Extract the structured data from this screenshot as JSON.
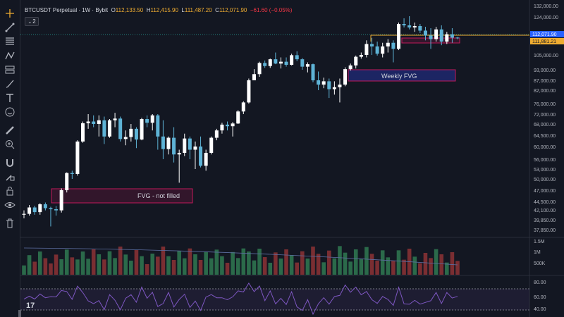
{
  "legend": {
    "symbol": "BTCUSDT Perpetual · 1W · Bybit",
    "open_label": "O",
    "open": "112,133.50",
    "high_label": "H",
    "high": "112,415.90",
    "low_label": "L",
    "low": "111,487.20",
    "close_label": "C",
    "close": "112,071.90",
    "change": "−61.60 (−0.05%)",
    "collapse_count": "2"
  },
  "price_axis": {
    "ticks": [
      "132,000.00",
      "124,000.00",
      "116,000.00",
      "105,000.00",
      "93,000.00",
      "87,000.00",
      "82,000.00",
      "76,000.00",
      "72,000.00",
      "68,000.00",
      "64,500.00",
      "60,000.00",
      "56,000.00",
      "53,000.00",
      "50,000.00",
      "47,000.00",
      "44,500.00",
      "42,100.00",
      "39,850.00",
      "37,850.00"
    ],
    "current_price": "112,071.90",
    "level_price": "111,881.21"
  },
  "volume_axis": {
    "ticks": [
      "1.5M",
      "1M",
      "500K"
    ]
  },
  "rsi_axis": {
    "ticks": [
      "80.00",
      "60.00",
      "40.00"
    ]
  },
  "annotations": {
    "fvg_not_filled": "FVG - not filled",
    "weekly_fvg": "Weekly FVG"
  },
  "colors": {
    "up": "#ffffff",
    "down": "#5eb3d6",
    "vol_up": "#2b6a4a",
    "vol_down": "#7a2e32",
    "box_border": "#c2185b",
    "level_line": "#f0ad31",
    "rsi_line": "#7e57c2"
  },
  "toolbar_icons": [
    "crosshair-icon",
    "trendline-icon",
    "fib-icon",
    "pattern-icon",
    "projection-icon",
    "brush-icon",
    "text-icon",
    "emoji-icon",
    "ruler-icon",
    "zoom-icon",
    "magnet-icon",
    "lock-draw-icon",
    "lock-icon",
    "eye-icon",
    "trash-icon"
  ],
  "chart_data": {
    "type": "candlestick",
    "interval": "1W",
    "candles": [
      [
        41000,
        42000,
        40200,
        41200
      ],
      [
        41200,
        43500,
        40800,
        42800
      ],
      [
        42800,
        43300,
        41000,
        41600
      ],
      [
        41600,
        44000,
        41000,
        43700
      ],
      [
        43700,
        44200,
        42000,
        42600
      ],
      [
        42600,
        43000,
        38500,
        42300
      ],
      [
        42300,
        43200,
        40800,
        42000
      ],
      [
        42000,
        47500,
        41500,
        47000
      ],
      [
        47000,
        52000,
        46500,
        51800
      ],
      [
        51800,
        52500,
        50000,
        51500
      ],
      [
        51500,
        62500,
        51000,
        62000
      ],
      [
        62000,
        69000,
        61500,
        68300
      ],
      [
        68300,
        72000,
        66500,
        69000
      ],
      [
        69000,
        71500,
        67000,
        68000
      ],
      [
        68000,
        71500,
        64000,
        69500
      ],
      [
        69500,
        71000,
        61000,
        64000
      ],
      [
        64000,
        70000,
        63500,
        69500
      ],
      [
        69500,
        72500,
        67000,
        70200
      ],
      [
        70200,
        71000,
        62000,
        63000
      ],
      [
        63000,
        66000,
        60500,
        63800
      ],
      [
        63800,
        68000,
        62000,
        66500
      ],
      [
        66500,
        67000,
        59500,
        62800
      ],
      [
        62800,
        70500,
        62500,
        70000
      ],
      [
        70000,
        71500,
        67000,
        68500
      ],
      [
        68500,
        72000,
        66000,
        71500
      ],
      [
        71500,
        72000,
        59000,
        64000
      ],
      [
        64000,
        69500,
        56000,
        59200
      ],
      [
        59200,
        64000,
        57500,
        63500
      ],
      [
        63500,
        67000,
        55000,
        57500
      ],
      [
        57500,
        59000,
        49000,
        58000
      ],
      [
        58000,
        65000,
        57000,
        63200
      ],
      [
        63200,
        64000,
        56000,
        59000
      ],
      [
        59000,
        62000,
        53000,
        60000
      ],
      [
        60000,
        64000,
        53500,
        54000
      ],
      [
        54000,
        59000,
        52500,
        58000
      ],
      [
        58000,
        64000,
        57500,
        63500
      ],
      [
        63500,
        66500,
        62500,
        66000
      ],
      [
        66000,
        68500,
        65000,
        67800
      ],
      [
        67800,
        69000,
        66000,
        67300
      ],
      [
        67300,
        68800,
        64000,
        68200
      ],
      [
        68200,
        73500,
        68000,
        73000
      ],
      [
        73000,
        77000,
        72000,
        76500
      ],
      [
        76500,
        88000,
        76000,
        87000
      ],
      [
        87000,
        93500,
        87000,
        90500
      ],
      [
        90500,
        99500,
        89000,
        98500
      ],
      [
        98500,
        100500,
        94500,
        96000
      ],
      [
        96000,
        102000,
        94500,
        101500
      ],
      [
        101500,
        106000,
        97500,
        98000
      ],
      [
        98000,
        103000,
        94000,
        99500
      ],
      [
        99500,
        103000,
        95500,
        97000
      ],
      [
        97000,
        105500,
        96500,
        104800
      ],
      [
        104800,
        106500,
        100000,
        101500
      ],
      [
        101500,
        102500,
        93000,
        95500
      ],
      [
        95500,
        99000,
        91500,
        97500
      ],
      [
        97500,
        98000,
        86000,
        87000
      ],
      [
        87000,
        92000,
        82000,
        84800
      ],
      [
        84800,
        88500,
        83000,
        86500
      ],
      [
        86500,
        88000,
        78500,
        82500
      ],
      [
        82500,
        86500,
        80000,
        83500
      ],
      [
        83500,
        88000,
        76500,
        84800
      ],
      [
        84800,
        95000,
        84000,
        93500
      ],
      [
        93500,
        98000,
        92500,
        96500
      ],
      [
        96500,
        104500,
        94000,
        103500
      ],
      [
        103500,
        106000,
        102000,
        105000
      ],
      [
        105000,
        111000,
        103000,
        109500
      ],
      [
        109500,
        112000,
        105000,
        108500
      ],
      [
        108500,
        110500,
        104500,
        105500
      ],
      [
        105500,
        110000,
        103000,
        108500
      ],
      [
        108500,
        111500,
        106000,
        110000
      ],
      [
        110000,
        111000,
        99000,
        107500
      ],
      [
        107500,
        120000,
        107000,
        119000
      ],
      [
        119000,
        123000,
        116500,
        118000
      ],
      [
        118000,
        124500,
        115500,
        116500
      ],
      [
        116500,
        120000,
        114500,
        117500
      ],
      [
        117500,
        119000,
        114000,
        115000
      ],
      [
        115000,
        117000,
        111000,
        113000
      ],
      [
        113000,
        116000,
        107500,
        111500
      ],
      [
        111500,
        117000,
        110500,
        115500
      ],
      [
        115500,
        118000,
        109000,
        110500
      ],
      [
        110500,
        114500,
        109500,
        113500
      ],
      [
        113500,
        116000,
        110000,
        112100
      ],
      [
        112133.5,
        112415.9,
        111487.2,
        112071.9
      ]
    ],
    "volume_hint": "weekly volume bars (green up / red down)",
    "rsi_levels": [
      80,
      60,
      40
    ],
    "zones": [
      {
        "label": "FVG - not filled"
      },
      {
        "label": "Weekly FVG"
      }
    ]
  }
}
